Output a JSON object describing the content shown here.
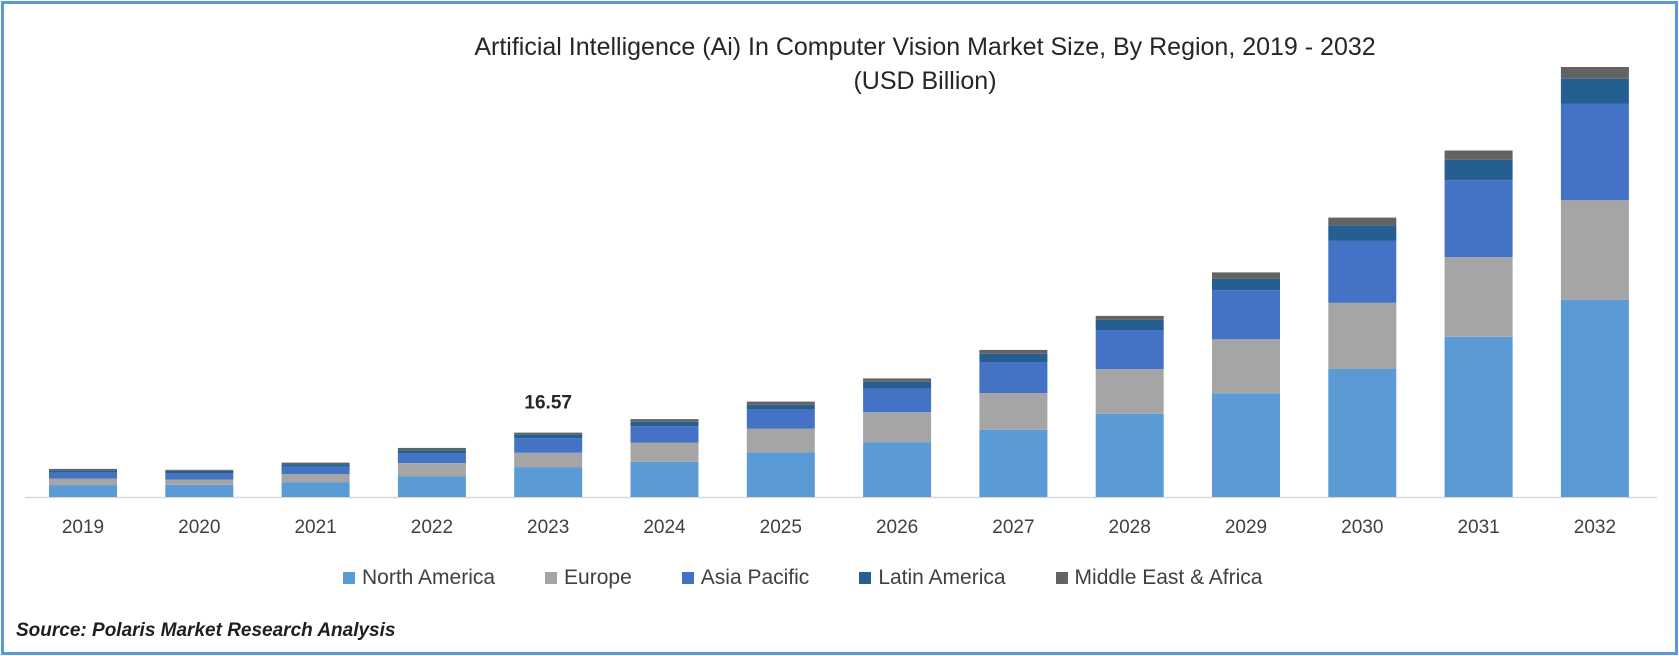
{
  "chart_data": {
    "type": "bar",
    "stacked": true,
    "title": "Artificial Intelligence (Ai) In Computer Vision Market Size, By Region, 2019 - 2032",
    "subtitle": "(USD Billion)",
    "xlabel": "",
    "ylabel": "",
    "grid": false,
    "legend_position": "bottom",
    "categories": [
      "2019",
      "2020",
      "2021",
      "2022",
      "2023",
      "2024",
      "2025",
      "2026",
      "2027",
      "2028",
      "2029",
      "2030",
      "2031",
      "2032"
    ],
    "series": [
      {
        "name": "North America",
        "color": "#5b9bd5",
        "values": [
          6.6,
          6.7,
          8.3,
          11.4,
          16.4,
          19.5,
          24.8,
          30.5,
          37.4,
          46.3,
          57.6,
          71.1,
          89.0,
          109.5
        ]
      },
      {
        "name": "Europe",
        "color": "#a5a5a5",
        "values": [
          3.7,
          3.0,
          4.5,
          7.4,
          8.2,
          10.8,
          13.2,
          16.6,
          20.3,
          24.7,
          30.1,
          36.8,
          44.2,
          55.3
        ]
      },
      {
        "name": "Asia Pacific",
        "color": "#4472c4",
        "values": [
          3.2,
          3.4,
          4.0,
          5.4,
          8.0,
          9.0,
          10.4,
          13.1,
          17.3,
          21.8,
          27.2,
          34.4,
          42.8,
          53.8
        ]
      },
      {
        "name": "Latin America",
        "color": "#255e91",
        "values": [
          1.4,
          1.4,
          1.5,
          1.8,
          2.3,
          2.5,
          2.8,
          3.8,
          4.6,
          5.6,
          6.4,
          8.5,
          11.4,
          13.8
        ]
      },
      {
        "name": "Middle East & Africa",
        "color": "#636363",
        "values": [
          0.7,
          0.6,
          0.8,
          1.3,
          0.9,
          1.5,
          1.8,
          1.9,
          2.1,
          2.2,
          3.5,
          4.4,
          5.1,
          6.5
        ]
      }
    ],
    "annotations": [
      {
        "category": "2023",
        "label": "16.57"
      }
    ],
    "ylim": [
      0,
      250
    ]
  },
  "source_text": "Source: Polaris Market Research Analysis"
}
